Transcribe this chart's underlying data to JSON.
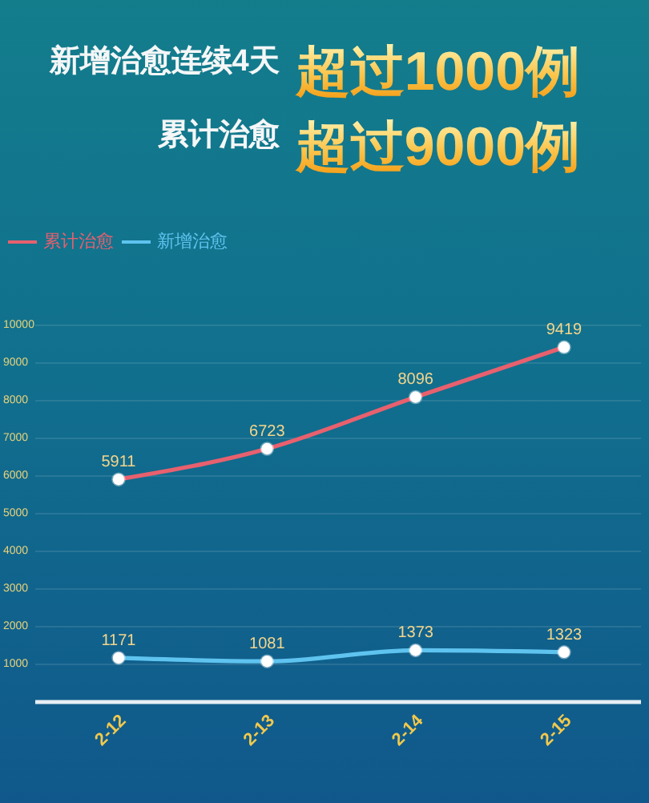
{
  "chart_data": {
    "type": "line",
    "title": "新增治愈连续4天 超过1000例",
    "subtitle": "累计治愈 超过9000例",
    "categories": [
      "2-12",
      "2-13",
      "2-14",
      "2-15"
    ],
    "series": [
      {
        "name": "累计治愈",
        "color": "#e8606e",
        "values": [
          5911,
          6723,
          8096,
          9419
        ]
      },
      {
        "name": "新增治愈",
        "color": "#5fc3ef",
        "values": [
          1171,
          1081,
          1373,
          1323
        ]
      }
    ],
    "ylim": [
      0,
      10000
    ],
    "yticks": [
      1000,
      2000,
      3000,
      4000,
      5000,
      6000,
      7000,
      8000,
      9000,
      10000
    ],
    "grid": "y",
    "legend": "top left",
    "marker": "circle",
    "data_labels": true
  }
}
